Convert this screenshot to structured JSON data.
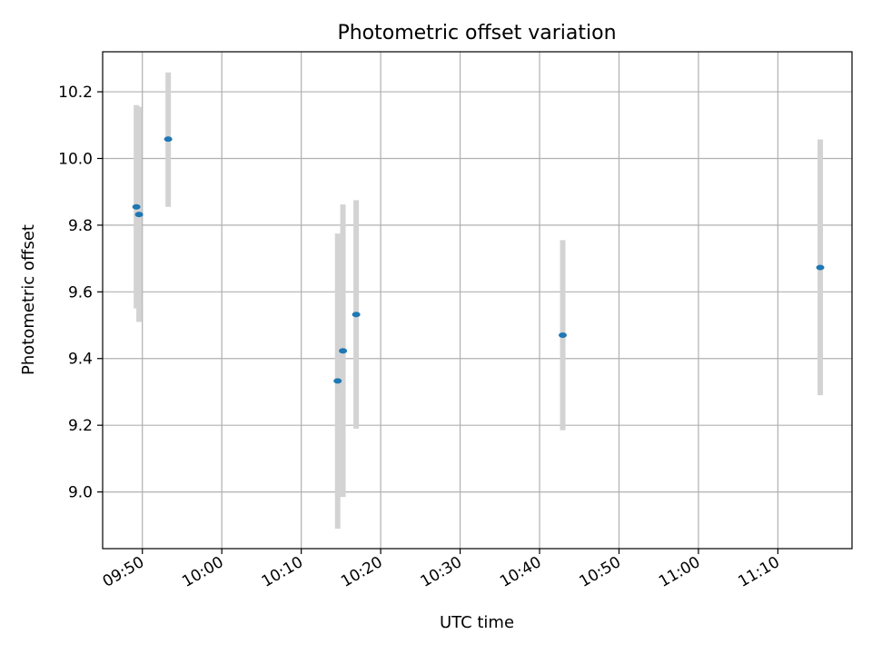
{
  "chart_data": {
    "type": "scatter",
    "title": "Photometric offset variation",
    "xlabel": "UTC time",
    "ylabel": "Photometric offset",
    "x_tick_labels": [
      "09:50",
      "10:00",
      "10:10",
      "10:20",
      "10:30",
      "10:40",
      "10:50",
      "11:00",
      "11:10"
    ],
    "y_ticks": [
      9.0,
      9.2,
      9.4,
      9.6,
      9.8,
      10.0,
      10.2
    ],
    "xlim": [
      "09:45:00",
      "11:19:20"
    ],
    "ylim": [
      8.83,
      10.32
    ],
    "grid": true,
    "marker_color": "#1f77b4",
    "errorbar_color": "#d3d3d3",
    "points": [
      {
        "time": "09:49:15",
        "value": 9.855,
        "lower": 9.55,
        "upper": 10.16
      },
      {
        "time": "09:49:35",
        "value": 9.832,
        "lower": 9.51,
        "upper": 10.155
      },
      {
        "time": "09:53:15",
        "value": 10.058,
        "lower": 9.855,
        "upper": 10.258
      },
      {
        "time": "10:14:35",
        "value": 9.333,
        "lower": 8.89,
        "upper": 9.775
      },
      {
        "time": "10:15:15",
        "value": 9.423,
        "lower": 8.985,
        "upper": 9.862
      },
      {
        "time": "10:16:55",
        "value": 9.532,
        "lower": 9.19,
        "upper": 9.875
      },
      {
        "time": "10:42:55",
        "value": 9.47,
        "lower": 9.185,
        "upper": 9.755
      },
      {
        "time": "11:15:20",
        "value": 9.673,
        "lower": 9.29,
        "upper": 10.057
      }
    ]
  }
}
